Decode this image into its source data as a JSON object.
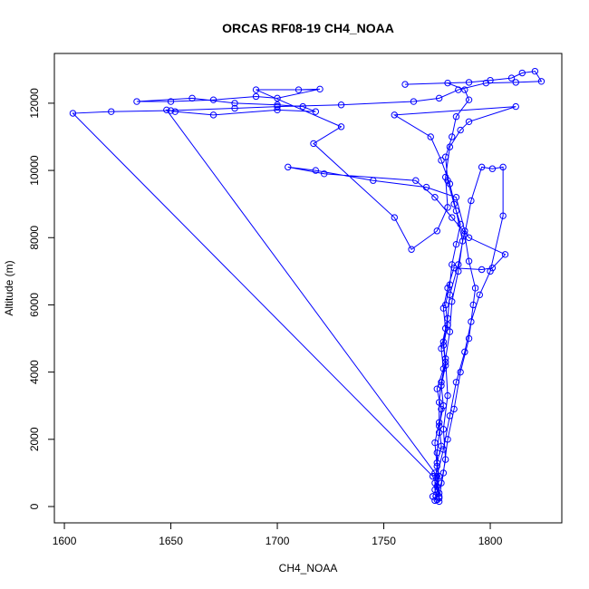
{
  "chart_data": {
    "type": "line",
    "title": "ORCAS RF08-19 CH4_NOAA",
    "x_label": "CH4_NOAA",
    "y_label": "Altitude (m)",
    "color": "#0000ff",
    "markers": true,
    "x": [
      1775,
      1774,
      1776,
      1775,
      1777,
      1776,
      1778,
      1777,
      1779,
      1778,
      1780,
      1779,
      1781,
      1782,
      1784,
      1786,
      1783,
      1780,
      1779,
      1782,
      1784,
      1790,
      1788,
      1780,
      1760,
      1790,
      1800,
      1810,
      1815,
      1821,
      1824,
      1812,
      1798,
      1785,
      1776,
      1764,
      1730,
      1700,
      1680,
      1650,
      1622,
      1604,
      1773,
      1775,
      1773,
      1776,
      1775,
      1776,
      1777,
      1775,
      1778,
      1777,
      1779,
      1778,
      1780,
      1783,
      1796,
      1801,
      1807,
      1790,
      1782,
      1774,
      1765,
      1722,
      1705,
      1718,
      1745,
      1770,
      1784,
      1788,
      1785,
      1781,
      1780,
      1778,
      1779,
      1777,
      1776,
      1776,
      1774,
      1775,
      1774,
      1776,
      1778,
      1780,
      1783,
      1786,
      1790,
      1792,
      1793,
      1790,
      1788,
      1791,
      1796,
      1801,
      1806,
      1806,
      1800,
      1795,
      1791,
      1788,
      1784,
      1781,
      1778,
      1775,
      1776,
      1774,
      1777,
      1779,
      1778,
      1780,
      1779,
      1781,
      1782,
      1785,
      1787,
      1784,
      1781,
      1777,
      1772,
      1755,
      1812,
      1790,
      1786,
      1781,
      1779,
      1780,
      1775,
      1763,
      1755,
      1717,
      1730,
      1690,
      1710,
      1720,
      1700,
      1690,
      1670,
      1650,
      1634,
      1660,
      1680,
      1700,
      1712,
      1718,
      1700,
      1670,
      1652,
      1648,
      1774,
      1776
    ],
    "values": [
      200,
      500,
      900,
      1300,
      1800,
      2400,
      3000,
      3600,
      4200,
      4800,
      5400,
      6000,
      6600,
      7200,
      7800,
      8400,
      9000,
      9700,
      10400,
      11000,
      11600,
      12100,
      12400,
      12600,
      12560,
      12620,
      12680,
      12750,
      12900,
      12950,
      12650,
      12620,
      12600,
      12400,
      12150,
      12050,
      11950,
      11900,
      11850,
      11780,
      11750,
      11700,
      900,
      600,
      300,
      150,
      1600,
      2200,
      2900,
      3500,
      4100,
      4700,
      5300,
      5900,
      6500,
      7100,
      7050,
      7100,
      7500,
      8000,
      8600,
      9200,
      9700,
      9900,
      10100,
      10000,
      9700,
      9500,
      9200,
      8200,
      7200,
      6300,
      5600,
      4900,
      4300,
      3700,
      3100,
      2500,
      1900,
      1200,
      700,
      250,
      1000,
      2000,
      2900,
      4000,
      5000,
      6000,
      6500,
      7300,
      8100,
      9100,
      10100,
      10050,
      10100,
      8650,
      7000,
      6300,
      5500,
      4600,
      3700,
      2700,
      1700,
      900,
      400,
      180,
      700,
      1400,
      2300,
      3300,
      4400,
      5200,
      6100,
      7000,
      7900,
      8800,
      9600,
      10300,
      11000,
      11650,
      11900,
      11450,
      11200,
      10700,
      9800,
      8900,
      8200,
      7650,
      8600,
      10800,
      11300,
      12400,
      12400,
      12420,
      12150,
      12200,
      12100,
      12050,
      12050,
      12150,
      12000,
      11950,
      11900,
      11750,
      11800,
      11650,
      11750,
      11800,
      1000,
      300
    ],
    "xlim": [
      1595.3,
      1833.6
    ],
    "ylim": [
      -485,
      13480
    ],
    "xticks": [
      1600,
      1650,
      1700,
      1750,
      1800
    ],
    "yticks": [
      0,
      2000,
      4000,
      6000,
      8000,
      10000,
      12000
    ]
  }
}
